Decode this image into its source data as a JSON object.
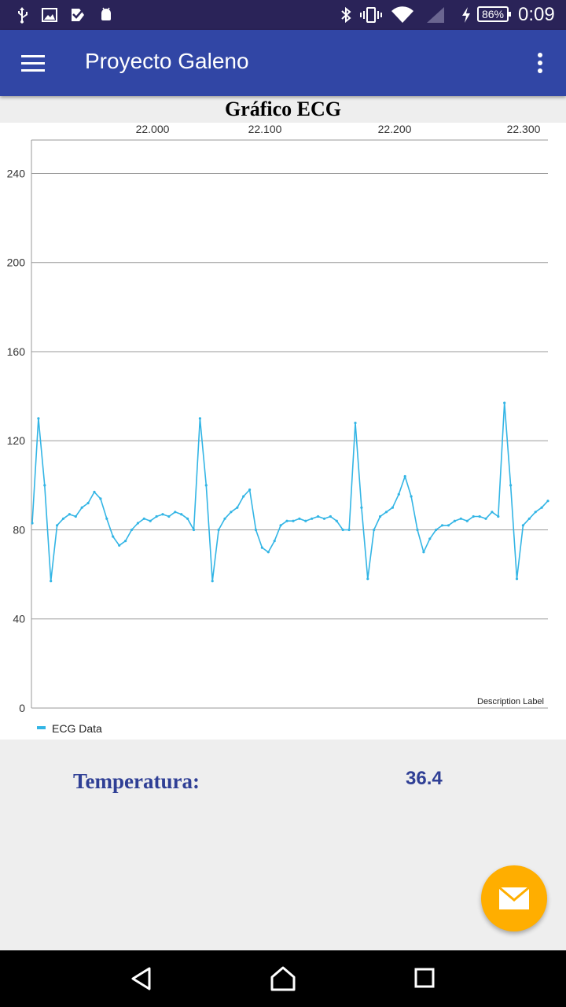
{
  "status_bar": {
    "left_icons": [
      "usb-icon",
      "image-icon",
      "check-icon",
      "android-icon"
    ],
    "right_icons": [
      "bluetooth-icon",
      "vibrate-icon",
      "wifi-icon",
      "signal-icon",
      "charging-icon"
    ],
    "battery": "86%",
    "time": "0:09"
  },
  "app_bar": {
    "title": "Proyecto Galeno",
    "menu_icon": "hamburger-menu-icon",
    "overflow_icon": "more-vert-icon",
    "color": "#3146a5"
  },
  "chart_data": {
    "type": "line",
    "title": "Gráfico ECG",
    "x_tick_labels": [
      "22.000",
      "22.100",
      "22.200",
      "22.300"
    ],
    "y_ticks": [
      0,
      40,
      80,
      120,
      160,
      200,
      240
    ],
    "ylim": [
      0,
      255
    ],
    "grid": true,
    "description_label": "Description Label",
    "legend": {
      "position": "bottom-left",
      "entries": [
        "ECG Data"
      ]
    },
    "series": [
      {
        "name": "ECG Data",
        "color": "#33b5e5",
        "values": [
          83,
          130,
          100,
          57,
          82,
          85,
          87,
          86,
          90,
          92,
          97,
          94,
          85,
          77,
          73,
          75,
          80,
          83,
          85,
          84,
          86,
          87,
          86,
          88,
          87,
          85,
          80,
          130,
          100,
          57,
          80,
          85,
          88,
          90,
          95,
          98,
          80,
          72,
          70,
          75,
          82,
          84,
          84,
          85,
          84,
          85,
          86,
          85,
          86,
          84,
          80,
          80,
          128,
          90,
          58,
          80,
          86,
          88,
          90,
          96,
          104,
          95,
          80,
          70,
          76,
          80,
          82,
          82,
          84,
          85,
          84,
          86,
          86,
          85,
          88,
          86,
          137,
          100,
          58,
          82,
          85,
          88,
          90,
          93
        ]
      }
    ]
  },
  "temperature": {
    "label": "Temperatura:",
    "value": "36.4"
  },
  "fab": {
    "icon": "email-icon",
    "color": "#ffae00"
  },
  "nav_bar": {
    "icons": [
      "back-icon",
      "home-icon",
      "recents-icon"
    ]
  }
}
